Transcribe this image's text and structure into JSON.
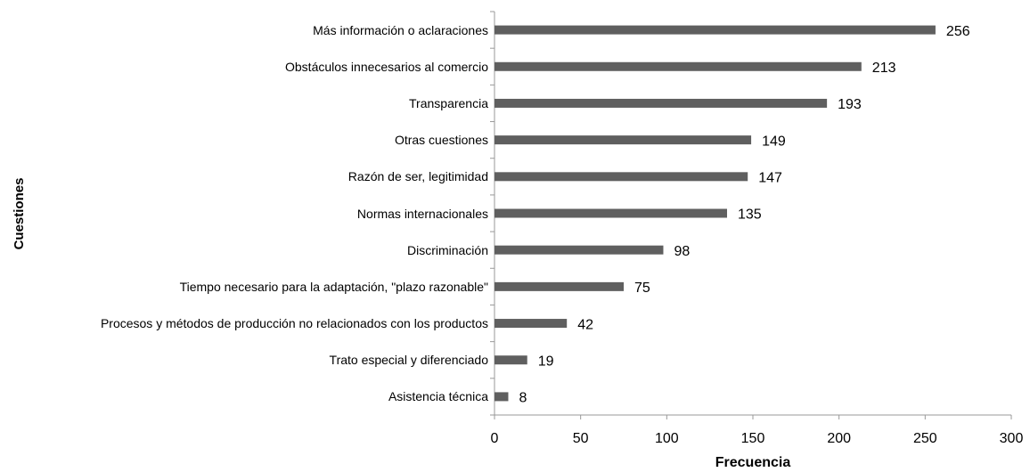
{
  "chart_data": {
    "type": "bar",
    "orientation": "horizontal",
    "xlabel": "Frecuencia",
    "ylabel": "Cuestiones",
    "categories": [
      "Más información  o aclaraciones",
      "Obstáculos innecesarios al comercio",
      "Transparencia",
      "Otras cuestiones",
      "Razón de ser, legitimidad",
      "Normas internacionales",
      "Discriminación",
      "Tiempo necesario para la adaptación, \"plazo razonable\"",
      "Procesos y métodos de producción no relacionados con los productos",
      "Trato especial y diferenciado",
      "Asistencia técnica"
    ],
    "values": [
      256,
      213,
      193,
      149,
      147,
      135,
      98,
      75,
      42,
      19,
      8
    ],
    "color": "#5f5f5f",
    "xlim": [
      0,
      300
    ],
    "xticks": [
      0,
      50,
      100,
      150,
      200,
      250,
      300
    ],
    "grid": false
  }
}
